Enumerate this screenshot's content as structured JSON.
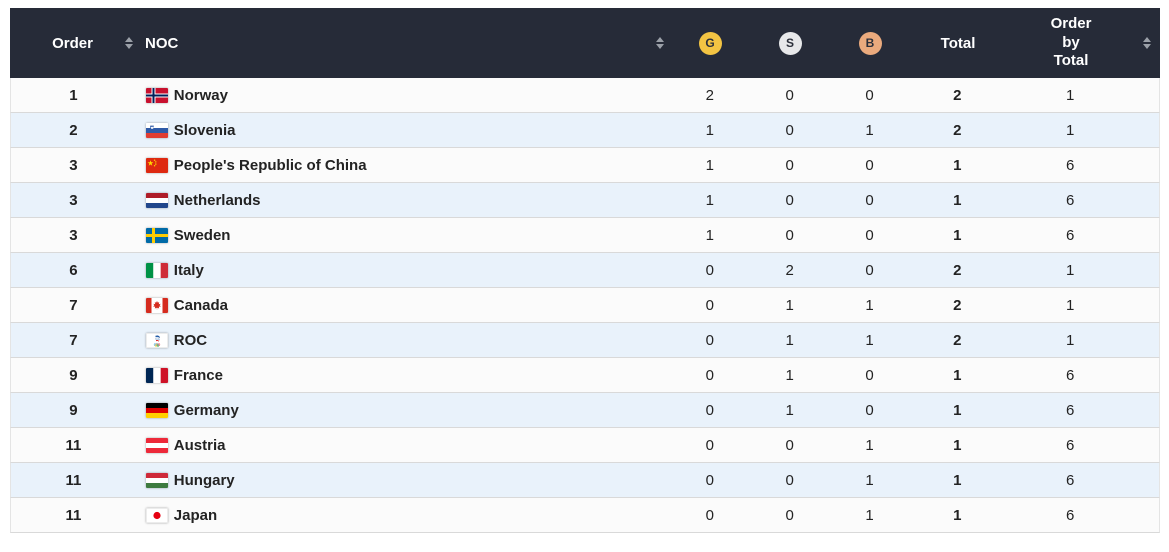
{
  "header": {
    "order": "Order",
    "noc": "NOC",
    "gold": "G",
    "silver": "S",
    "bronze": "B",
    "total": "Total",
    "order_by_total": "Order by Total"
  },
  "rows": [
    {
      "order": "1",
      "flag": "norway",
      "noc": "Norway",
      "gold": "2",
      "silver": "0",
      "bronze": "0",
      "total": "2",
      "order_by_total": "1"
    },
    {
      "order": "2",
      "flag": "slovenia",
      "noc": "Slovenia",
      "gold": "1",
      "silver": "0",
      "bronze": "1",
      "total": "2",
      "order_by_total": "1"
    },
    {
      "order": "3",
      "flag": "china",
      "noc": "People's Republic of China",
      "gold": "1",
      "silver": "0",
      "bronze": "0",
      "total": "1",
      "order_by_total": "6"
    },
    {
      "order": "3",
      "flag": "netherlands",
      "noc": "Netherlands",
      "gold": "1",
      "silver": "0",
      "bronze": "0",
      "total": "1",
      "order_by_total": "6"
    },
    {
      "order": "3",
      "flag": "sweden",
      "noc": "Sweden",
      "gold": "1",
      "silver": "0",
      "bronze": "0",
      "total": "1",
      "order_by_total": "6"
    },
    {
      "order": "6",
      "flag": "italy",
      "noc": "Italy",
      "gold": "0",
      "silver": "2",
      "bronze": "0",
      "total": "2",
      "order_by_total": "1"
    },
    {
      "order": "7",
      "flag": "canada",
      "noc": "Canada",
      "gold": "0",
      "silver": "1",
      "bronze": "1",
      "total": "2",
      "order_by_total": "1"
    },
    {
      "order": "7",
      "flag": "roc",
      "noc": "ROC",
      "gold": "0",
      "silver": "1",
      "bronze": "1",
      "total": "2",
      "order_by_total": "1"
    },
    {
      "order": "9",
      "flag": "france",
      "noc": "France",
      "gold": "0",
      "silver": "1",
      "bronze": "0",
      "total": "1",
      "order_by_total": "6"
    },
    {
      "order": "9",
      "flag": "germany",
      "noc": "Germany",
      "gold": "0",
      "silver": "1",
      "bronze": "0",
      "total": "1",
      "order_by_total": "6"
    },
    {
      "order": "11",
      "flag": "austria",
      "noc": "Austria",
      "gold": "0",
      "silver": "0",
      "bronze": "1",
      "total": "1",
      "order_by_total": "6"
    },
    {
      "order": "11",
      "flag": "hungary",
      "noc": "Hungary",
      "gold": "0",
      "silver": "0",
      "bronze": "1",
      "total": "1",
      "order_by_total": "6"
    },
    {
      "order": "11",
      "flag": "japan",
      "noc": "Japan",
      "gold": "0",
      "silver": "0",
      "bronze": "1",
      "total": "1",
      "order_by_total": "6"
    }
  ],
  "colors": {
    "header_bg": "#262b38",
    "gold": "#f3c443",
    "silver": "#e7e8ea",
    "bronze": "#eaaa7d",
    "row_alt": "#e9f2fb",
    "sort_icon": "#9ba0a8"
  },
  "icons": {
    "sort": "sort-updown-arrows",
    "gold_medal": "gold-circle-G",
    "silver_medal": "silver-circle-S",
    "bronze_medal": "bronze-circle-B"
  }
}
